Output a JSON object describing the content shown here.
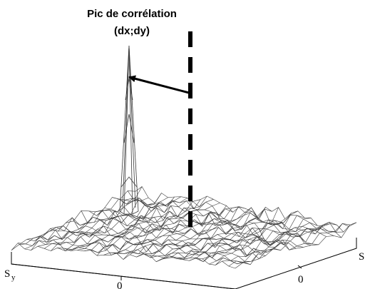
{
  "annotation": {
    "line1": "Pic de corrélation",
    "line2": "(dx;dy)"
  },
  "axes": {
    "left_label": "S",
    "left_sub": "y",
    "left_tick": "0",
    "right_tick": "0",
    "right_label": "S"
  },
  "colors": {
    "mesh": "#3a3a3a",
    "ink": "#000000",
    "background": "#ffffff"
  }
}
